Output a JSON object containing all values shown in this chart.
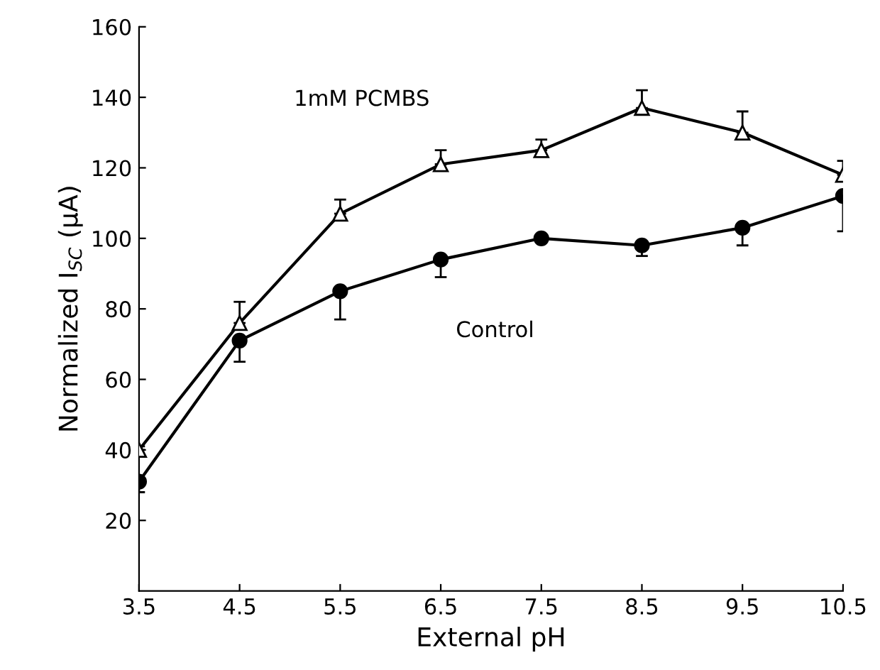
{
  "chart_data": {
    "type": "line",
    "xlabel": "External pH",
    "ylabel": "Normalized I$_{SC}$ (μA)",
    "x": [
      3.5,
      4.5,
      5.5,
      6.5,
      7.5,
      8.5,
      9.5,
      10.5
    ],
    "series": [
      {
        "name": "1mM PCMBS",
        "color": "#000000",
        "marker": "triangle",
        "values": [
          40,
          76,
          107,
          121,
          125,
          137,
          130,
          118
        ],
        "errors": [
          [
            40,
            41
          ],
          [
            76,
            82
          ],
          [
            107,
            111
          ],
          [
            121,
            125
          ],
          [
            125,
            128
          ],
          [
            137,
            142
          ],
          [
            130,
            136
          ],
          [
            118,
            122
          ]
        ]
      },
      {
        "name": "Control",
        "color": "#000000",
        "marker": "circle",
        "values": [
          31,
          71,
          85,
          94,
          100,
          98,
          103,
          112
        ],
        "errors": [
          [
            28,
            31
          ],
          [
            65,
            71
          ],
          [
            77,
            85
          ],
          [
            89,
            94
          ],
          null,
          [
            95,
            98
          ],
          [
            98,
            103
          ],
          [
            102,
            112
          ]
        ]
      }
    ],
    "xlim": [
      3.5,
      10.5
    ],
    "xticks": [
      3.5,
      4.5,
      5.5,
      6.5,
      7.5,
      8.5,
      9.5,
      10.5
    ],
    "ylim": [
      0,
      160
    ],
    "yticks": [
      20,
      40,
      60,
      80,
      100,
      120,
      140,
      160
    ],
    "grid": false,
    "legend": false,
    "line_style": "solid"
  }
}
